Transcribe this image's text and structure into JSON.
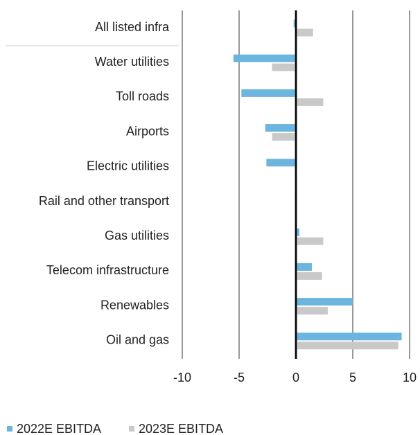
{
  "chart_data": {
    "type": "bar",
    "orientation": "horizontal",
    "categories": [
      "All listed infra",
      "Water utilities",
      "Toll roads",
      "Airports",
      "Electric utilities",
      "Rail and other transport",
      "Gas utilities",
      "Telecom infrastructure",
      "Renewables",
      "Oil and gas"
    ],
    "series": [
      {
        "name": "2022E EBITDA",
        "color": "#6bb5de",
        "values": [
          -0.2,
          -5.5,
          -4.8,
          -2.7,
          -2.6,
          -0.1,
          0.3,
          1.4,
          5.0,
          9.3
        ]
      },
      {
        "name": "2023E EBITDA",
        "color": "#c9c9c9",
        "values": [
          1.5,
          -2.1,
          2.4,
          -2.1,
          0.1,
          0,
          2.4,
          2.3,
          2.8,
          9.0
        ]
      }
    ],
    "xlim": [
      -10,
      10
    ],
    "xticks": [
      -10,
      -5,
      0,
      5,
      10
    ],
    "grid": true
  }
}
